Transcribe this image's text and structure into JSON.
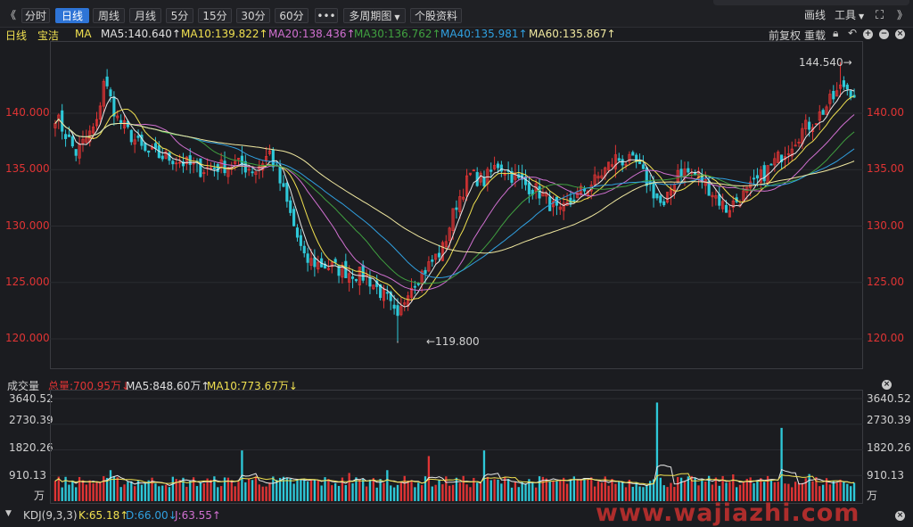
{
  "toolbar": {
    "nav_back": "《",
    "tabs": [
      "分时",
      "日线",
      "周线",
      "月线",
      "5分",
      "15分",
      "30分",
      "60分"
    ],
    "more": "•••",
    "multi_period": "多周期图",
    "stock_info": "个股资料",
    "draw": "画线",
    "tools": "工具",
    "nav_fwd": "》"
  },
  "price_panel": {
    "period": "日线",
    "name": "宝洁",
    "indicator": "MA",
    "ma_labels": [
      {
        "text": "MA5:140.640↑",
        "color": "#e0e0e0"
      },
      {
        "text": "MA10:139.822↑",
        "color": "#f0e050"
      },
      {
        "text": "MA20:138.436↑",
        "color": "#d070d0"
      },
      {
        "text": "MA30:136.762↑",
        "color": "#40a040"
      },
      {
        "text": "MA40:135.981↑",
        "color": "#30a0e0"
      },
      {
        "text": "MA60:135.867↑",
        "color": "#f0e8a0"
      }
    ],
    "adjust": "前复权",
    "reset": "重载",
    "y_ticks": [
      "140.000",
      "135.000",
      "130.000",
      "125.000",
      "120.000"
    ],
    "y_ticks_right": [
      "140.00",
      "135.00",
      "130.00",
      "125.00",
      "120.00"
    ],
    "high_label": "144.540→",
    "low_label": "←119.800"
  },
  "volume_panel": {
    "title": "成交量",
    "total": "总量:700.95万↓",
    "ma5": "MA5:848.60万↑",
    "ma10": "MA10:773.67万↓",
    "y_ticks": [
      "3640.52",
      "2730.39",
      "1820.26",
      "910.13"
    ],
    "unit": "万"
  },
  "kdj_panel": {
    "title": "KDJ(9,3,3)",
    "k": "K:65.18↑",
    "d": "D:66.00↓",
    "j": "J:63.55↑"
  },
  "watermark": "www.wajiazhi.com",
  "colors": {
    "up": "#e03434",
    "down": "#2ec8d8",
    "bg": "#1b1c20"
  },
  "chart_data": {
    "type": "candlestick",
    "title": "宝洁 日线",
    "ylim": [
      118.5,
      147.0
    ],
    "y_ticks": [
      120,
      125,
      130,
      135,
      140
    ],
    "max_price": 144.54,
    "min_price": 119.8,
    "close_anchors": [
      [
        0,
        139.8
      ],
      [
        6,
        136.5
      ],
      [
        12,
        139.0
      ],
      [
        14,
        143.0
      ],
      [
        18,
        139.5
      ],
      [
        26,
        136.5
      ],
      [
        34,
        136.0
      ],
      [
        42,
        135.0
      ],
      [
        52,
        135.5
      ],
      [
        58,
        135.0
      ],
      [
        62,
        136.5
      ],
      [
        66,
        133.0
      ],
      [
        72,
        127.0
      ],
      [
        78,
        126.5
      ],
      [
        84,
        126.0
      ],
      [
        90,
        125.5
      ],
      [
        96,
        123.5
      ],
      [
        99,
        121.5
      ],
      [
        102,
        124.5
      ],
      [
        108,
        126.5
      ],
      [
        112,
        128.0
      ],
      [
        116,
        132.0
      ],
      [
        120,
        134.5
      ],
      [
        124,
        134.0
      ],
      [
        128,
        135.5
      ],
      [
        134,
        134.0
      ],
      [
        140,
        133.0
      ],
      [
        146,
        131.0
      ],
      [
        150,
        132.5
      ],
      [
        156,
        134.0
      ],
      [
        162,
        136.0
      ],
      [
        168,
        135.5
      ],
      [
        172,
        133.5
      ],
      [
        176,
        131.5
      ],
      [
        180,
        135.0
      ],
      [
        186,
        134.5
      ],
      [
        190,
        133.0
      ],
      [
        194,
        131.5
      ],
      [
        200,
        133.0
      ],
      [
        206,
        135.0
      ],
      [
        212,
        137.0
      ],
      [
        216,
        138.5
      ],
      [
        220,
        139.5
      ],
      [
        224,
        141.0
      ],
      [
        228,
        142.5
      ],
      [
        231,
        141.8
      ]
    ],
    "ma_lines": [
      {
        "name": "MA5",
        "period": 5,
        "color": "#e8e8e8"
      },
      {
        "name": "MA10",
        "period": 10,
        "color": "#f0e050"
      },
      {
        "name": "MA20",
        "period": 20,
        "color": "#d070d0"
      },
      {
        "name": "MA30",
        "period": 30,
        "color": "#40a040"
      },
      {
        "name": "MA40",
        "period": 40,
        "color": "#30a0e0"
      },
      {
        "name": "MA60",
        "period": 60,
        "color": "#f0e8a0"
      }
    ],
    "volume": {
      "ylim": [
        0,
        3640.52
      ],
      "unit": "万",
      "y_ticks": [
        910.13,
        1820.26,
        2730.39,
        3640.52
      ],
      "spikes": [
        [
          16,
          1100
        ],
        [
          54,
          1800
        ],
        [
          58,
          880
        ],
        [
          85,
          1000
        ],
        [
          96,
          1100
        ],
        [
          108,
          1600
        ],
        [
          124,
          1800
        ],
        [
          174,
          3500
        ],
        [
          196,
          950
        ],
        [
          210,
          2600
        ],
        [
          218,
          960
        ],
        [
          232,
          1200
        ]
      ]
    }
  }
}
